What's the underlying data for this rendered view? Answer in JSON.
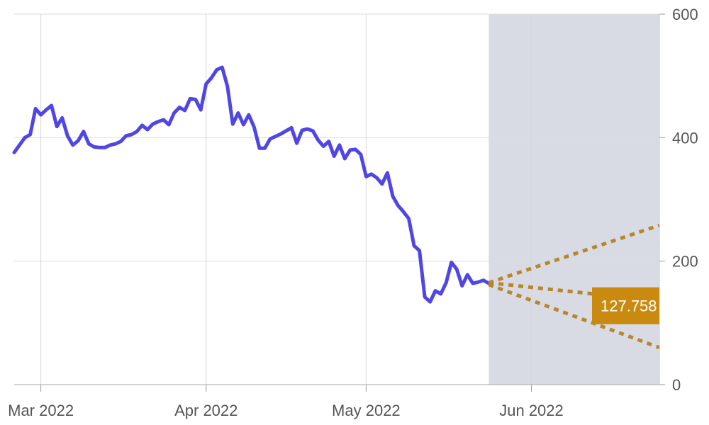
{
  "chart_data": {
    "type": "line",
    "title": "",
    "xlabel": "",
    "ylabel": "",
    "ylim": [
      0,
      600
    ],
    "xlim": [
      "2022-02-24",
      "2022-06-25"
    ],
    "y_ticks": [
      0,
      200,
      400,
      600
    ],
    "x_ticks": [
      {
        "date": "2022-03-01",
        "label": "Mar 2022"
      },
      {
        "date": "2022-04-01",
        "label": "Apr 2022"
      },
      {
        "date": "2022-05-01",
        "label": "May 2022"
      },
      {
        "date": "2022-06-01",
        "label": "Jun 2022"
      }
    ],
    "grid": true,
    "y_axis_position": "right",
    "shaded_region": {
      "from": "2022-05-24",
      "to": "2022-06-25",
      "color": "#d8dbe4"
    },
    "series": [
      {
        "style": "solid",
        "color": "#4f46e5",
        "points": [
          [
            "2022-02-24",
            376
          ],
          [
            "2022-02-25",
            388
          ],
          [
            "2022-02-26",
            400
          ],
          [
            "2022-02-27",
            405
          ],
          [
            "2022-02-28",
            447
          ],
          [
            "2022-03-01",
            437
          ],
          [
            "2022-03-02",
            445
          ],
          [
            "2022-03-03",
            452
          ],
          [
            "2022-03-04",
            418
          ],
          [
            "2022-03-05",
            432
          ],
          [
            "2022-03-06",
            403
          ],
          [
            "2022-03-07",
            388
          ],
          [
            "2022-03-08",
            395
          ],
          [
            "2022-03-09",
            410
          ],
          [
            "2022-03-10",
            390
          ],
          [
            "2022-03-11",
            385
          ],
          [
            "2022-03-12",
            384
          ],
          [
            "2022-03-13",
            384
          ],
          [
            "2022-03-14",
            388
          ],
          [
            "2022-03-15",
            390
          ],
          [
            "2022-03-16",
            394
          ],
          [
            "2022-03-17",
            403
          ],
          [
            "2022-03-18",
            405
          ],
          [
            "2022-03-19",
            410
          ],
          [
            "2022-03-20",
            420
          ],
          [
            "2022-03-21",
            413
          ],
          [
            "2022-03-22",
            422
          ],
          [
            "2022-03-23",
            426
          ],
          [
            "2022-03-24",
            429
          ],
          [
            "2022-03-25",
            421
          ],
          [
            "2022-03-26",
            440
          ],
          [
            "2022-03-27",
            449
          ],
          [
            "2022-03-28",
            444
          ],
          [
            "2022-03-29",
            463
          ],
          [
            "2022-03-30",
            462
          ],
          [
            "2022-03-31",
            445
          ],
          [
            "2022-04-01",
            487
          ],
          [
            "2022-04-02",
            497
          ],
          [
            "2022-04-03",
            510
          ],
          [
            "2022-04-04",
            514
          ],
          [
            "2022-04-05",
            483
          ],
          [
            "2022-04-06",
            422
          ],
          [
            "2022-04-07",
            440
          ],
          [
            "2022-04-08",
            421
          ],
          [
            "2022-04-09",
            437
          ],
          [
            "2022-04-10",
            417
          ],
          [
            "2022-04-11",
            383
          ],
          [
            "2022-04-12",
            383
          ],
          [
            "2022-04-13",
            398
          ],
          [
            "2022-04-14",
            402
          ],
          [
            "2022-04-15",
            406
          ],
          [
            "2022-04-16",
            411
          ],
          [
            "2022-04-17",
            416
          ],
          [
            "2022-04-18",
            391
          ],
          [
            "2022-04-19",
            412
          ],
          [
            "2022-04-20",
            414
          ],
          [
            "2022-04-21",
            411
          ],
          [
            "2022-04-22",
            396
          ],
          [
            "2022-04-23",
            386
          ],
          [
            "2022-04-24",
            394
          ],
          [
            "2022-04-25",
            370
          ],
          [
            "2022-04-26",
            388
          ],
          [
            "2022-04-27",
            366
          ],
          [
            "2022-04-28",
            380
          ],
          [
            "2022-04-29",
            381
          ],
          [
            "2022-04-30",
            373
          ],
          [
            "2022-05-01",
            337
          ],
          [
            "2022-05-02",
            341
          ],
          [
            "2022-05-03",
            335
          ],
          [
            "2022-05-04",
            325
          ],
          [
            "2022-05-05",
            343
          ],
          [
            "2022-05-06",
            305
          ],
          [
            "2022-05-07",
            290
          ],
          [
            "2022-05-08",
            280
          ],
          [
            "2022-05-09",
            269
          ],
          [
            "2022-05-10",
            225
          ],
          [
            "2022-05-11",
            217
          ],
          [
            "2022-05-12",
            142
          ],
          [
            "2022-05-13",
            134
          ],
          [
            "2022-05-14",
            152
          ],
          [
            "2022-05-15",
            147
          ],
          [
            "2022-05-16",
            165
          ],
          [
            "2022-05-17",
            198
          ],
          [
            "2022-05-18",
            187
          ],
          [
            "2022-05-19",
            160
          ],
          [
            "2022-05-20",
            178
          ],
          [
            "2022-05-21",
            164
          ],
          [
            "2022-05-22",
            166
          ],
          [
            "2022-05-23",
            169
          ],
          [
            "2022-05-24",
            164
          ]
        ]
      },
      {
        "style": "dotted",
        "color": "#b8862b",
        "points": [
          [
            "2022-05-24",
            165
          ],
          [
            "2022-06-25",
            258
          ]
        ]
      },
      {
        "style": "dotted",
        "color": "#b8862b",
        "points": [
          [
            "2022-05-24",
            165
          ],
          [
            "2022-06-18",
            142
          ]
        ]
      },
      {
        "style": "dotted",
        "color": "#b8862b",
        "points": [
          [
            "2022-05-24",
            162
          ],
          [
            "2022-06-25",
            60
          ]
        ]
      }
    ],
    "badge": {
      "text": "127.758",
      "value": 127.758,
      "color": "#c98a0f"
    }
  }
}
